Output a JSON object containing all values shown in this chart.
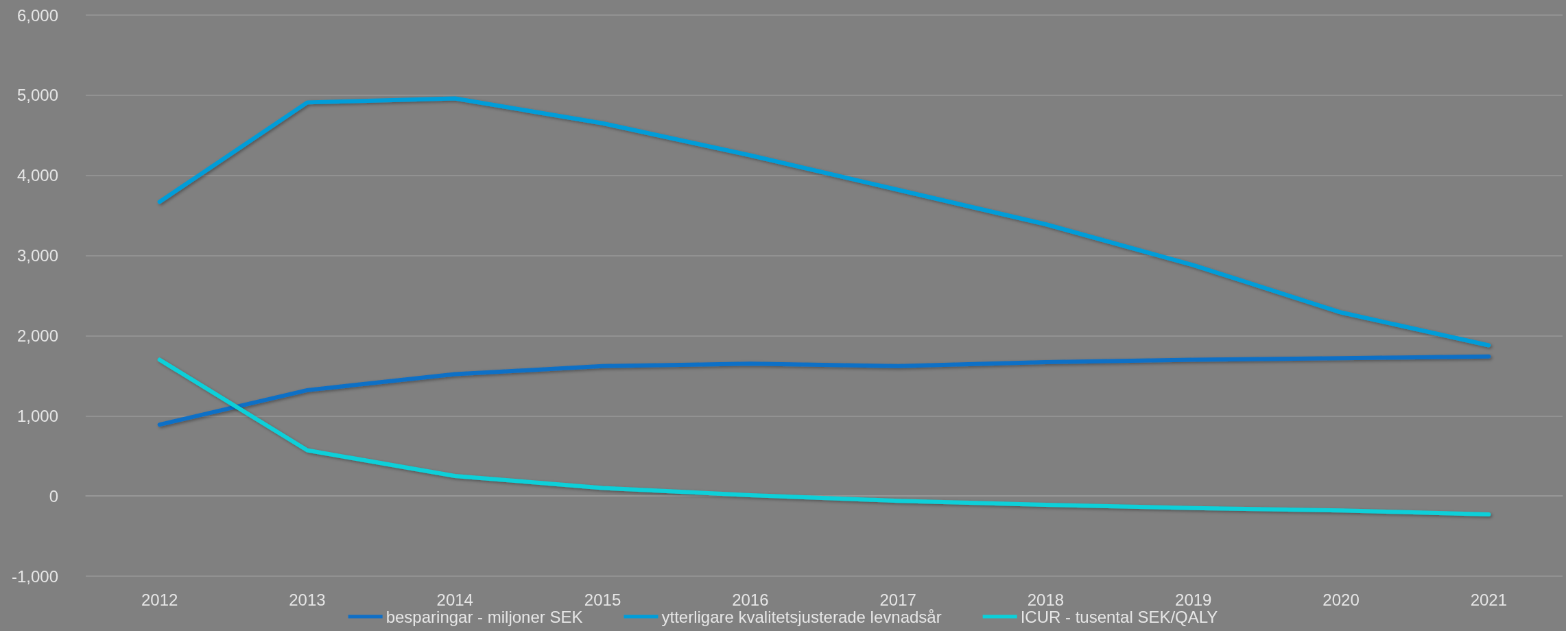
{
  "chart_data": {
    "type": "line",
    "categories": [
      "2012",
      "2013",
      "2014",
      "2015",
      "2016",
      "2017",
      "2018",
      "2019",
      "2020",
      "2021"
    ],
    "series": [
      {
        "name": "besparingar - miljoner SEK",
        "color": "#0f6fc6",
        "values": [
          890,
          1320,
          1520,
          1620,
          1650,
          1620,
          1670,
          1700,
          1720,
          1740
        ]
      },
      {
        "name": "ytterligare kvalitetsjusterade levnadsår",
        "color": "#009dd9",
        "values": [
          3670,
          4910,
          4960,
          4650,
          4250,
          3820,
          3390,
          2880,
          2290,
          1880
        ]
      },
      {
        "name": "ICUR - tusental SEK/QALY",
        "color": "#0bd0d9",
        "values": [
          1700,
          570,
          250,
          100,
          10,
          -60,
          -110,
          -150,
          -180,
          -230
        ]
      }
    ],
    "ylim": [
      -1000,
      6000
    ],
    "yticks": [
      {
        "value": -1000,
        "label": "-1,000"
      },
      0,
      {
        "value": 1000,
        "label": "1,000"
      },
      {
        "value": 2000,
        "label": "2,000"
      },
      {
        "value": 3000,
        "label": "3,000"
      },
      {
        "value": 4000,
        "label": "4,000"
      },
      {
        "value": 5000,
        "label": "5,000"
      },
      {
        "value": 6000,
        "label": "6,000"
      }
    ],
    "grid": "y",
    "legend": "bottom",
    "marker": "none",
    "line_style": "solid"
  }
}
